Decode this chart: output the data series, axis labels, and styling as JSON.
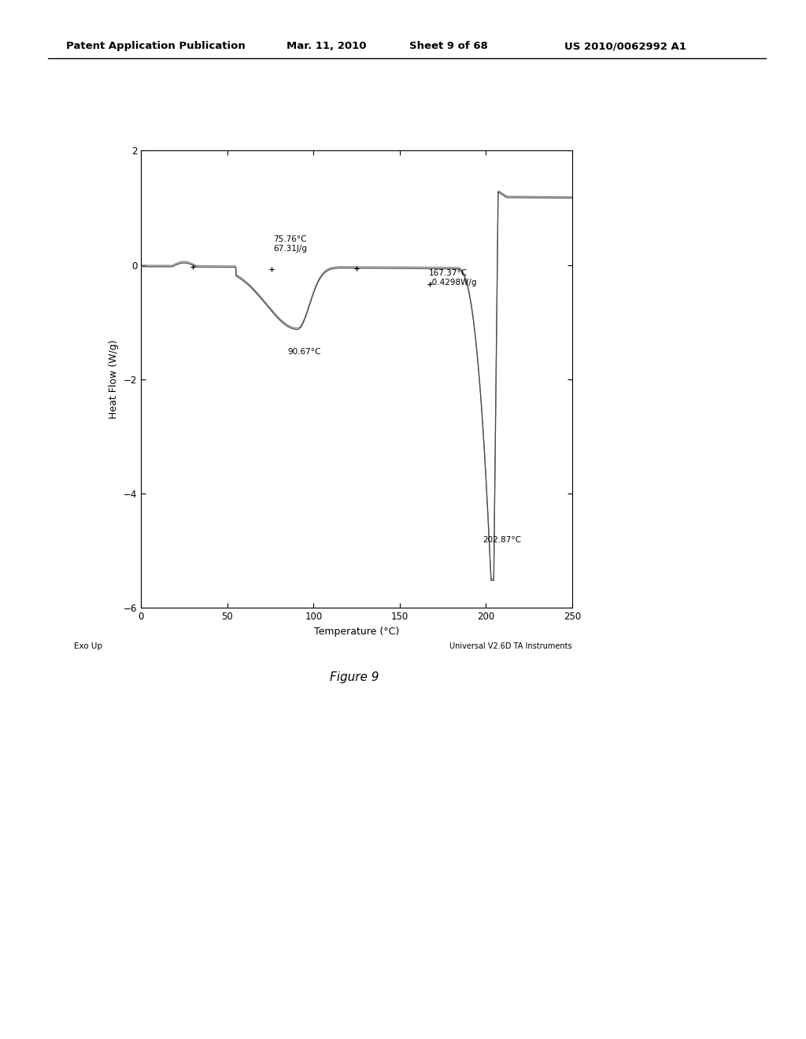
{
  "title_header": "Patent Application Publication",
  "title_date": "Mar. 11, 2010",
  "title_sheet": "Sheet 9 of 68",
  "title_patent": "US 2010/0062992 A1",
  "xlabel": "Temperature (°C)",
  "ylabel": "Heat Flow (W/g)",
  "xlim": [
    0,
    250
  ],
  "ylim": [
    -6,
    2
  ],
  "xticks": [
    0,
    50,
    100,
    150,
    200,
    250
  ],
  "yticks": [
    2,
    0,
    -2,
    -4,
    -6
  ],
  "exo_up_label": "Exo Up",
  "instrument_label": "Universal V2.6D TA Instruments",
  "figure_label": "Figure 9",
  "ann1_text": "75.76°C\n67.31J/g",
  "ann1_x": 76.5,
  "ann1_y": 0.22,
  "ann2_text": "90.67°C",
  "ann2_x": 85,
  "ann2_y": -1.45,
  "ann3_text": "167.37°C\n-0.4298W/g",
  "ann3_x": 167,
  "ann3_y": -0.08,
  "ann4_text": "202.87°C",
  "ann4_x": 198,
  "ann4_y": -4.75,
  "line_color": "#4a4a4a",
  "line_color2": "#888888",
  "background_color": "#ffffff"
}
